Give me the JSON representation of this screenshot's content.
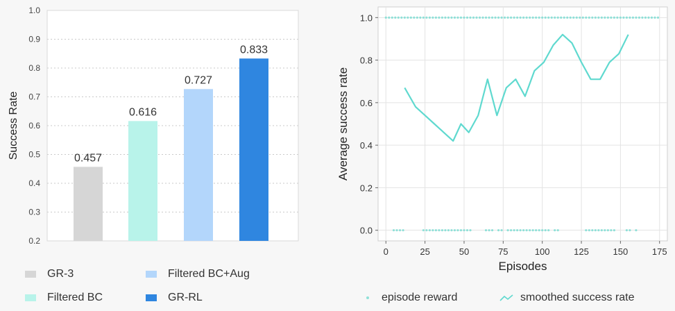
{
  "chart_data": [
    {
      "type": "bar",
      "ylabel": "Success Rate",
      "ylim": [
        0.2,
        1.0
      ],
      "yticks": [
        "0.2",
        "0.3",
        "0.4",
        "0.5",
        "0.6",
        "0.7",
        "0.8",
        "0.9",
        "1.0"
      ],
      "grid": true,
      "categories": [
        "GR-3",
        "Filtered BC",
        "Filtered BC+Aug",
        "GR-RL"
      ],
      "values": [
        0.457,
        0.616,
        0.727,
        0.833
      ],
      "value_labels": [
        "0.457",
        "0.616",
        "0.727",
        "0.833"
      ],
      "colors": [
        "#d6d6d6",
        "#b8f3ea",
        "#b3d6fb",
        "#2f86e0"
      ],
      "legend_placement": "bottom"
    },
    {
      "type": "line",
      "xlabel": "Episodes",
      "ylabel": "Average success rate",
      "xlim": [
        -5,
        180
      ],
      "ylim": [
        -0.05,
        1.05
      ],
      "xticks": [
        "0",
        "25",
        "50",
        "75",
        "100",
        "125",
        "150",
        "175"
      ],
      "yticks": [
        "0.0",
        "0.2",
        "0.4",
        "0.6",
        "0.8",
        "1.0"
      ],
      "grid": true,
      "legend_placement": "bottom",
      "series": [
        {
          "name": "episode reward",
          "style": "scatter",
          "color": "#8fe0d8",
          "reward_1_episodes": [
            0,
            2,
            4,
            6,
            8,
            10,
            12,
            14,
            16,
            18,
            20,
            22,
            24,
            26,
            28,
            30,
            32,
            34,
            36,
            38,
            40,
            42,
            44,
            46,
            48,
            50,
            52,
            54,
            56,
            58,
            60,
            62,
            64,
            66,
            68,
            70,
            72,
            74,
            76,
            78,
            80,
            82,
            84,
            86,
            88,
            90,
            92,
            94,
            96,
            98,
            100,
            102,
            104,
            106,
            108,
            110,
            112,
            114,
            116,
            118,
            120,
            122,
            124,
            126,
            128,
            130,
            132,
            134,
            136,
            138,
            140,
            142,
            144,
            146,
            148,
            150,
            152,
            154,
            156,
            158,
            160,
            162,
            164,
            166,
            168,
            170,
            172,
            174
          ],
          "reward_0_episodes": [
            5,
            7,
            9,
            11,
            24,
            26,
            28,
            30,
            32,
            34,
            36,
            38,
            40,
            42,
            44,
            46,
            48,
            50,
            52,
            54,
            64,
            66,
            68,
            72,
            74,
            78,
            80,
            82,
            84,
            86,
            88,
            90,
            92,
            94,
            96,
            98,
            100,
            102,
            104,
            108,
            110,
            128,
            130,
            132,
            134,
            136,
            138,
            140,
            142,
            144,
            146,
            154,
            156,
            160
          ]
        },
        {
          "name": "smoothed success rate",
          "style": "line",
          "color": "#5fd9cf",
          "x": [
            12,
            19,
            25,
            31,
            37,
            43,
            48,
            53,
            59,
            65,
            71,
            77,
            83,
            89,
            95,
            101,
            107,
            113,
            119,
            125,
            131,
            137,
            143,
            149,
            155
          ],
          "y": [
            0.67,
            0.58,
            0.54,
            0.5,
            0.46,
            0.42,
            0.5,
            0.46,
            0.54,
            0.71,
            0.54,
            0.67,
            0.71,
            0.63,
            0.75,
            0.79,
            0.87,
            0.92,
            0.88,
            0.79,
            0.71,
            0.71,
            0.79,
            0.83,
            0.92
          ]
        }
      ]
    }
  ]
}
